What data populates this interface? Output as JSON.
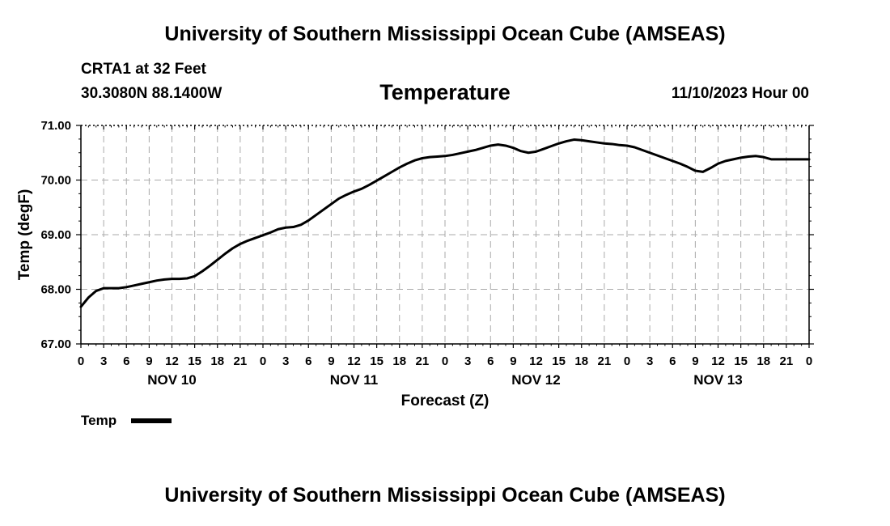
{
  "header": {
    "title": "University of Southern Mississippi Ocean Cube (AMSEAS)",
    "station": "CRTA1 at 32 Feet",
    "coords": "30.3080N  88.1400W",
    "run_time": "11/10/2023 Hour 00"
  },
  "footer": {
    "title": "University of Southern Mississippi Ocean Cube (AMSEAS)"
  },
  "chart_data": {
    "type": "line",
    "title": "Temperature",
    "xlabel": "Forecast (Z)",
    "ylabel": "Temp (degF)",
    "ylim": [
      67.0,
      71.0
    ],
    "xlim": [
      0,
      96
    ],
    "y_ticks": [
      "67.00",
      "68.00",
      "69.00",
      "70.00",
      "71.00"
    ],
    "y_tick_values": [
      67,
      68,
      69,
      70,
      71
    ],
    "x_tick_labels": [
      "0",
      "3",
      "6",
      "9",
      "12",
      "15",
      "18",
      "21",
      "0",
      "3",
      "6",
      "9",
      "12",
      "15",
      "18",
      "21",
      "0",
      "3",
      "6",
      "9",
      "12",
      "15",
      "18",
      "21",
      "0",
      "3",
      "6",
      "9",
      "12",
      "15",
      "18",
      "21",
      "0"
    ],
    "day_labels": [
      {
        "label": "NOV 10",
        "hour": 12
      },
      {
        "label": "NOV 11",
        "hour": 36
      },
      {
        "label": "NOV 12",
        "hour": 60
      },
      {
        "label": "NOV 13",
        "hour": 84
      }
    ],
    "grid": true,
    "legend": "bottom-left",
    "series": [
      {
        "name": "Temp",
        "color": "#000000",
        "x": [
          0,
          1,
          2,
          3,
          4,
          5,
          6,
          7,
          8,
          9,
          10,
          11,
          12,
          13,
          14,
          15,
          16,
          17,
          18,
          19,
          20,
          21,
          22,
          23,
          24,
          25,
          26,
          27,
          28,
          29,
          30,
          31,
          32,
          33,
          34,
          35,
          36,
          37,
          38,
          39,
          40,
          41,
          42,
          43,
          44,
          45,
          46,
          47,
          48,
          49,
          50,
          51,
          52,
          53,
          54,
          55,
          56,
          57,
          58,
          59,
          60,
          61,
          62,
          63,
          64,
          65,
          66,
          67,
          68,
          69,
          70,
          71,
          72,
          73,
          74,
          75,
          76,
          77,
          78,
          79,
          80,
          81,
          82,
          83,
          84,
          85,
          86,
          87,
          88,
          89,
          90,
          91,
          92,
          93,
          94,
          95,
          96
        ],
        "values": [
          67.68,
          67.85,
          67.97,
          68.02,
          68.02,
          68.02,
          68.04,
          68.07,
          68.1,
          68.13,
          68.16,
          68.18,
          68.19,
          68.19,
          68.2,
          68.24,
          68.33,
          68.43,
          68.54,
          68.65,
          68.75,
          68.83,
          68.89,
          68.94,
          68.99,
          69.04,
          69.1,
          69.13,
          69.14,
          69.18,
          69.26,
          69.36,
          69.46,
          69.56,
          69.66,
          69.73,
          69.79,
          69.84,
          69.91,
          69.99,
          70.07,
          70.15,
          70.23,
          70.3,
          70.36,
          70.4,
          70.42,
          70.43,
          70.44,
          70.46,
          70.49,
          70.52,
          70.55,
          70.59,
          70.63,
          70.65,
          70.63,
          70.59,
          70.53,
          70.5,
          70.52,
          70.57,
          70.62,
          70.67,
          70.71,
          70.74,
          70.73,
          70.71,
          70.69,
          70.67,
          70.66,
          70.64,
          70.63,
          70.6,
          70.55,
          70.5,
          70.45,
          70.4,
          70.35,
          70.3,
          70.24,
          70.17,
          70.15,
          70.22,
          70.3,
          70.35,
          70.38,
          70.41,
          70.43,
          70.44,
          70.42,
          70.38,
          70.38,
          70.38,
          70.38,
          70.38,
          70.38
        ]
      }
    ]
  }
}
